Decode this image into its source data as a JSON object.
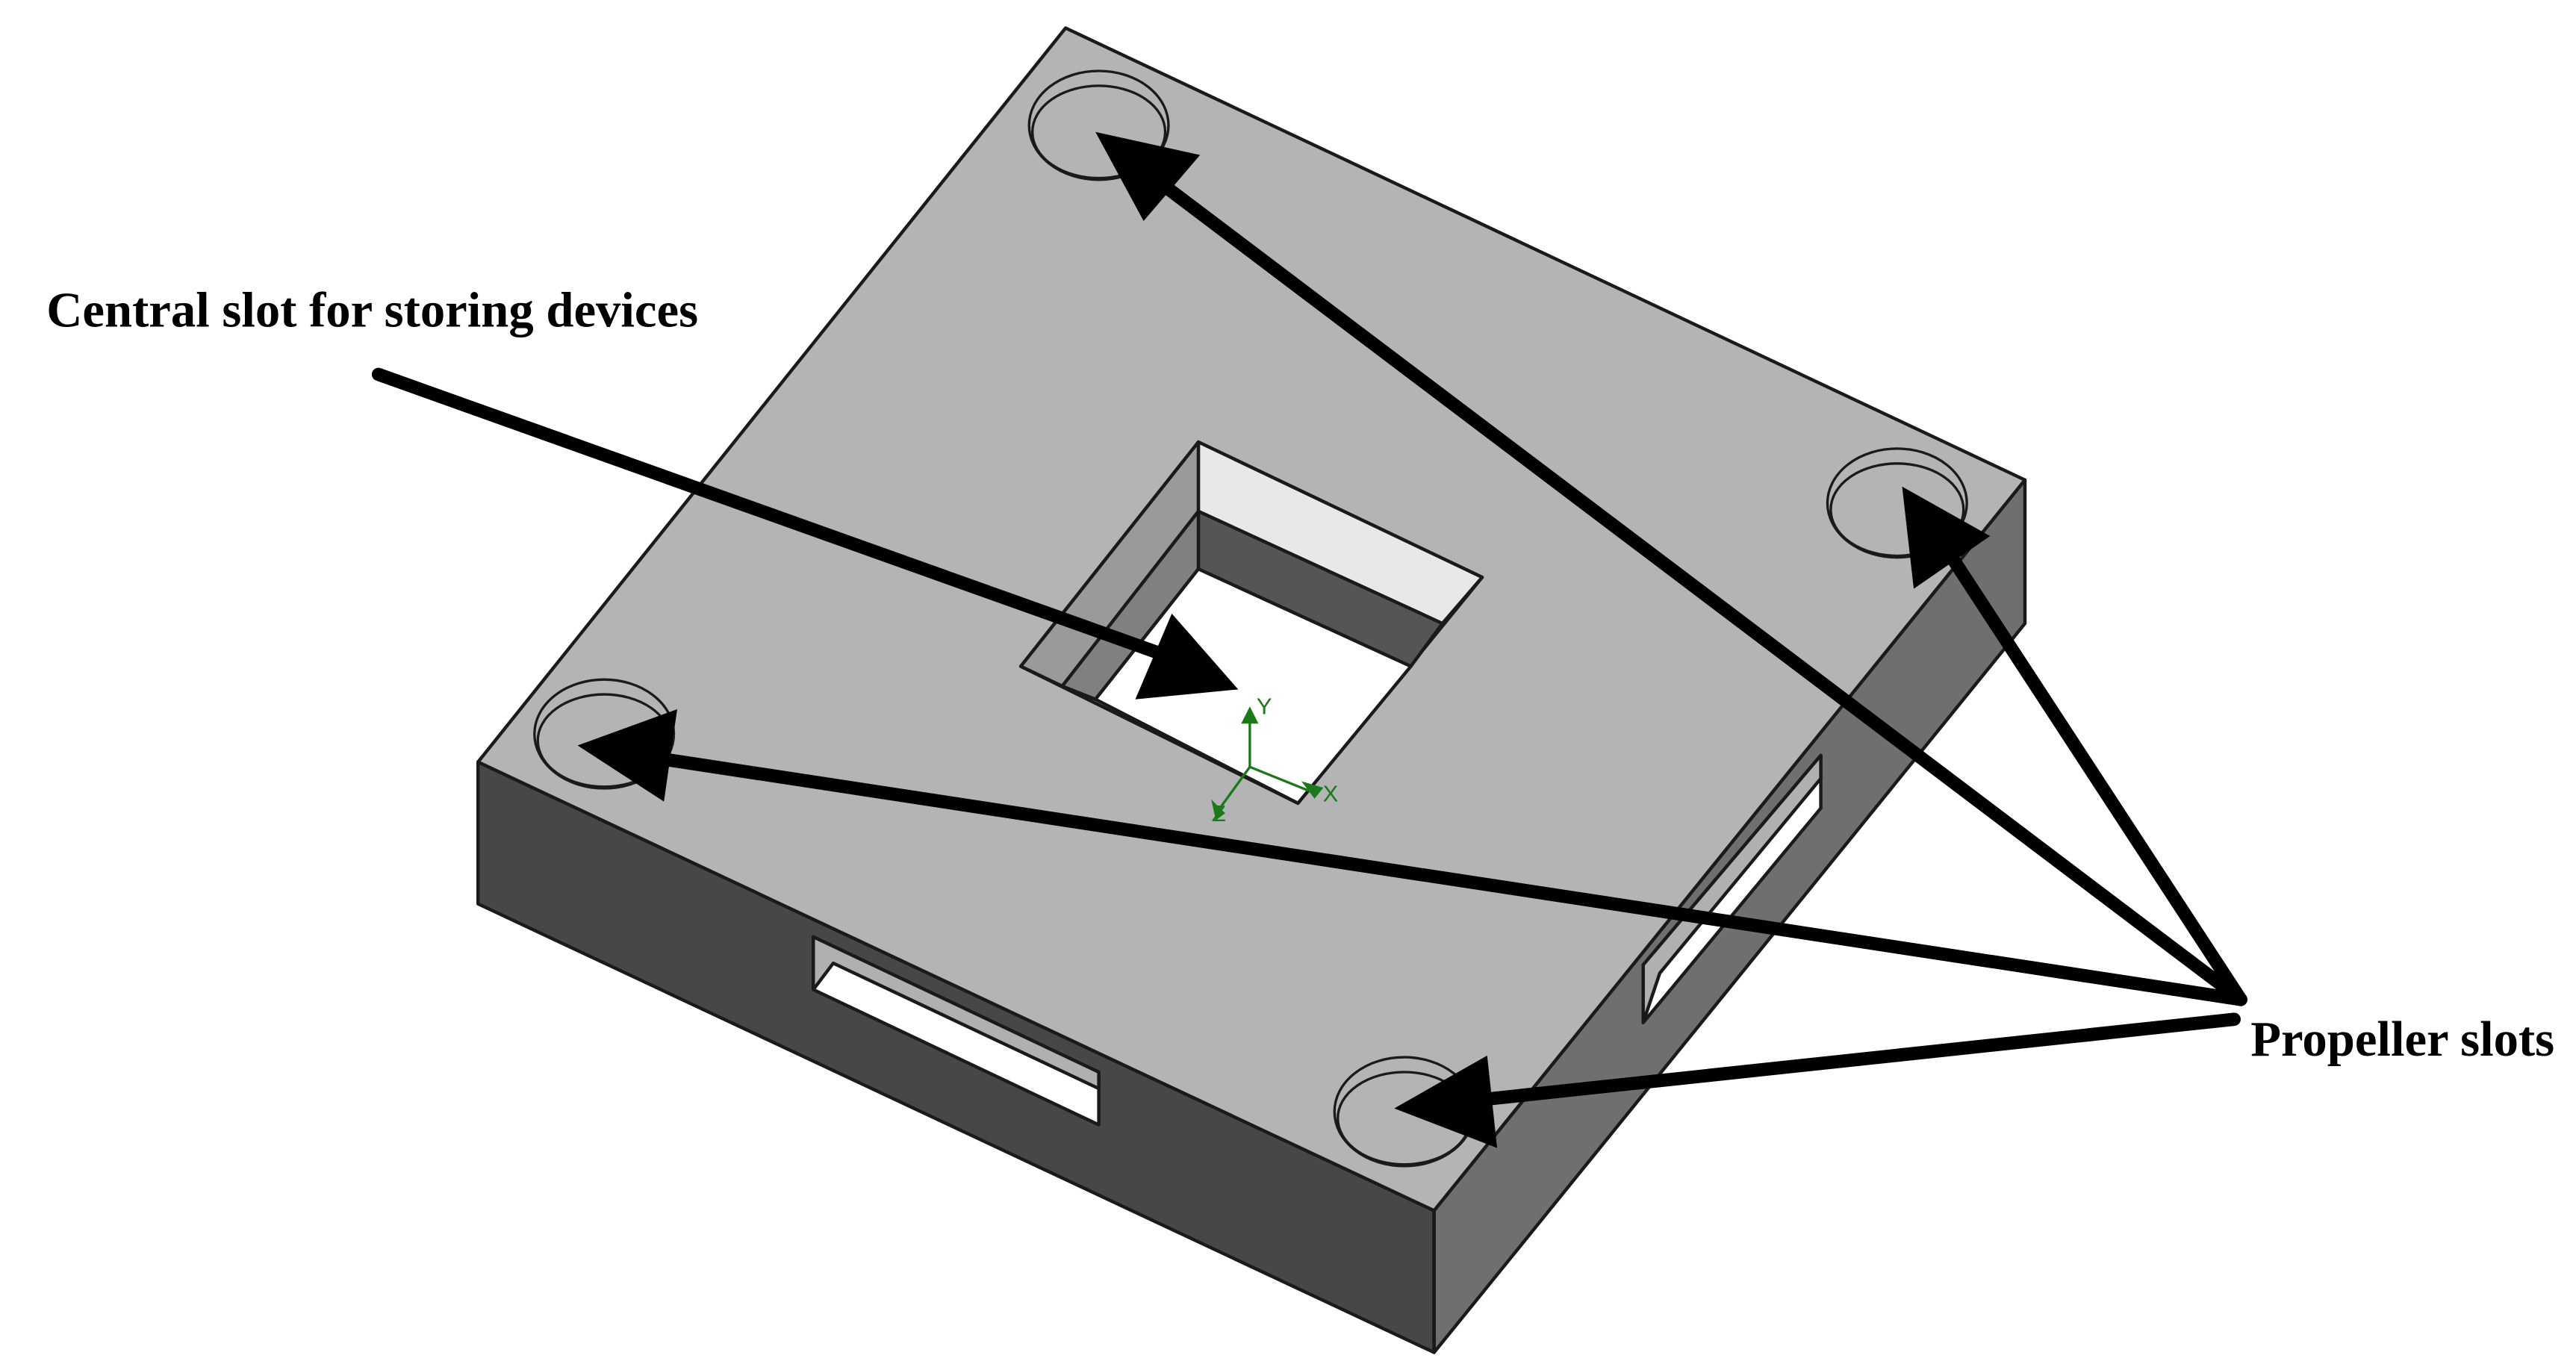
{
  "annotations": {
    "central_slot": "Central slot for storing devices",
    "propeller_slots": "Propeller slots"
  },
  "axes": {
    "x": "X",
    "y": "Y",
    "z": "Z"
  },
  "colors": {
    "top_face": "#b4b4b4",
    "front_face": "#474747",
    "right_face": "#6f6f6f",
    "axis_triad": "#1a7a1a",
    "arrows": "#000000"
  }
}
